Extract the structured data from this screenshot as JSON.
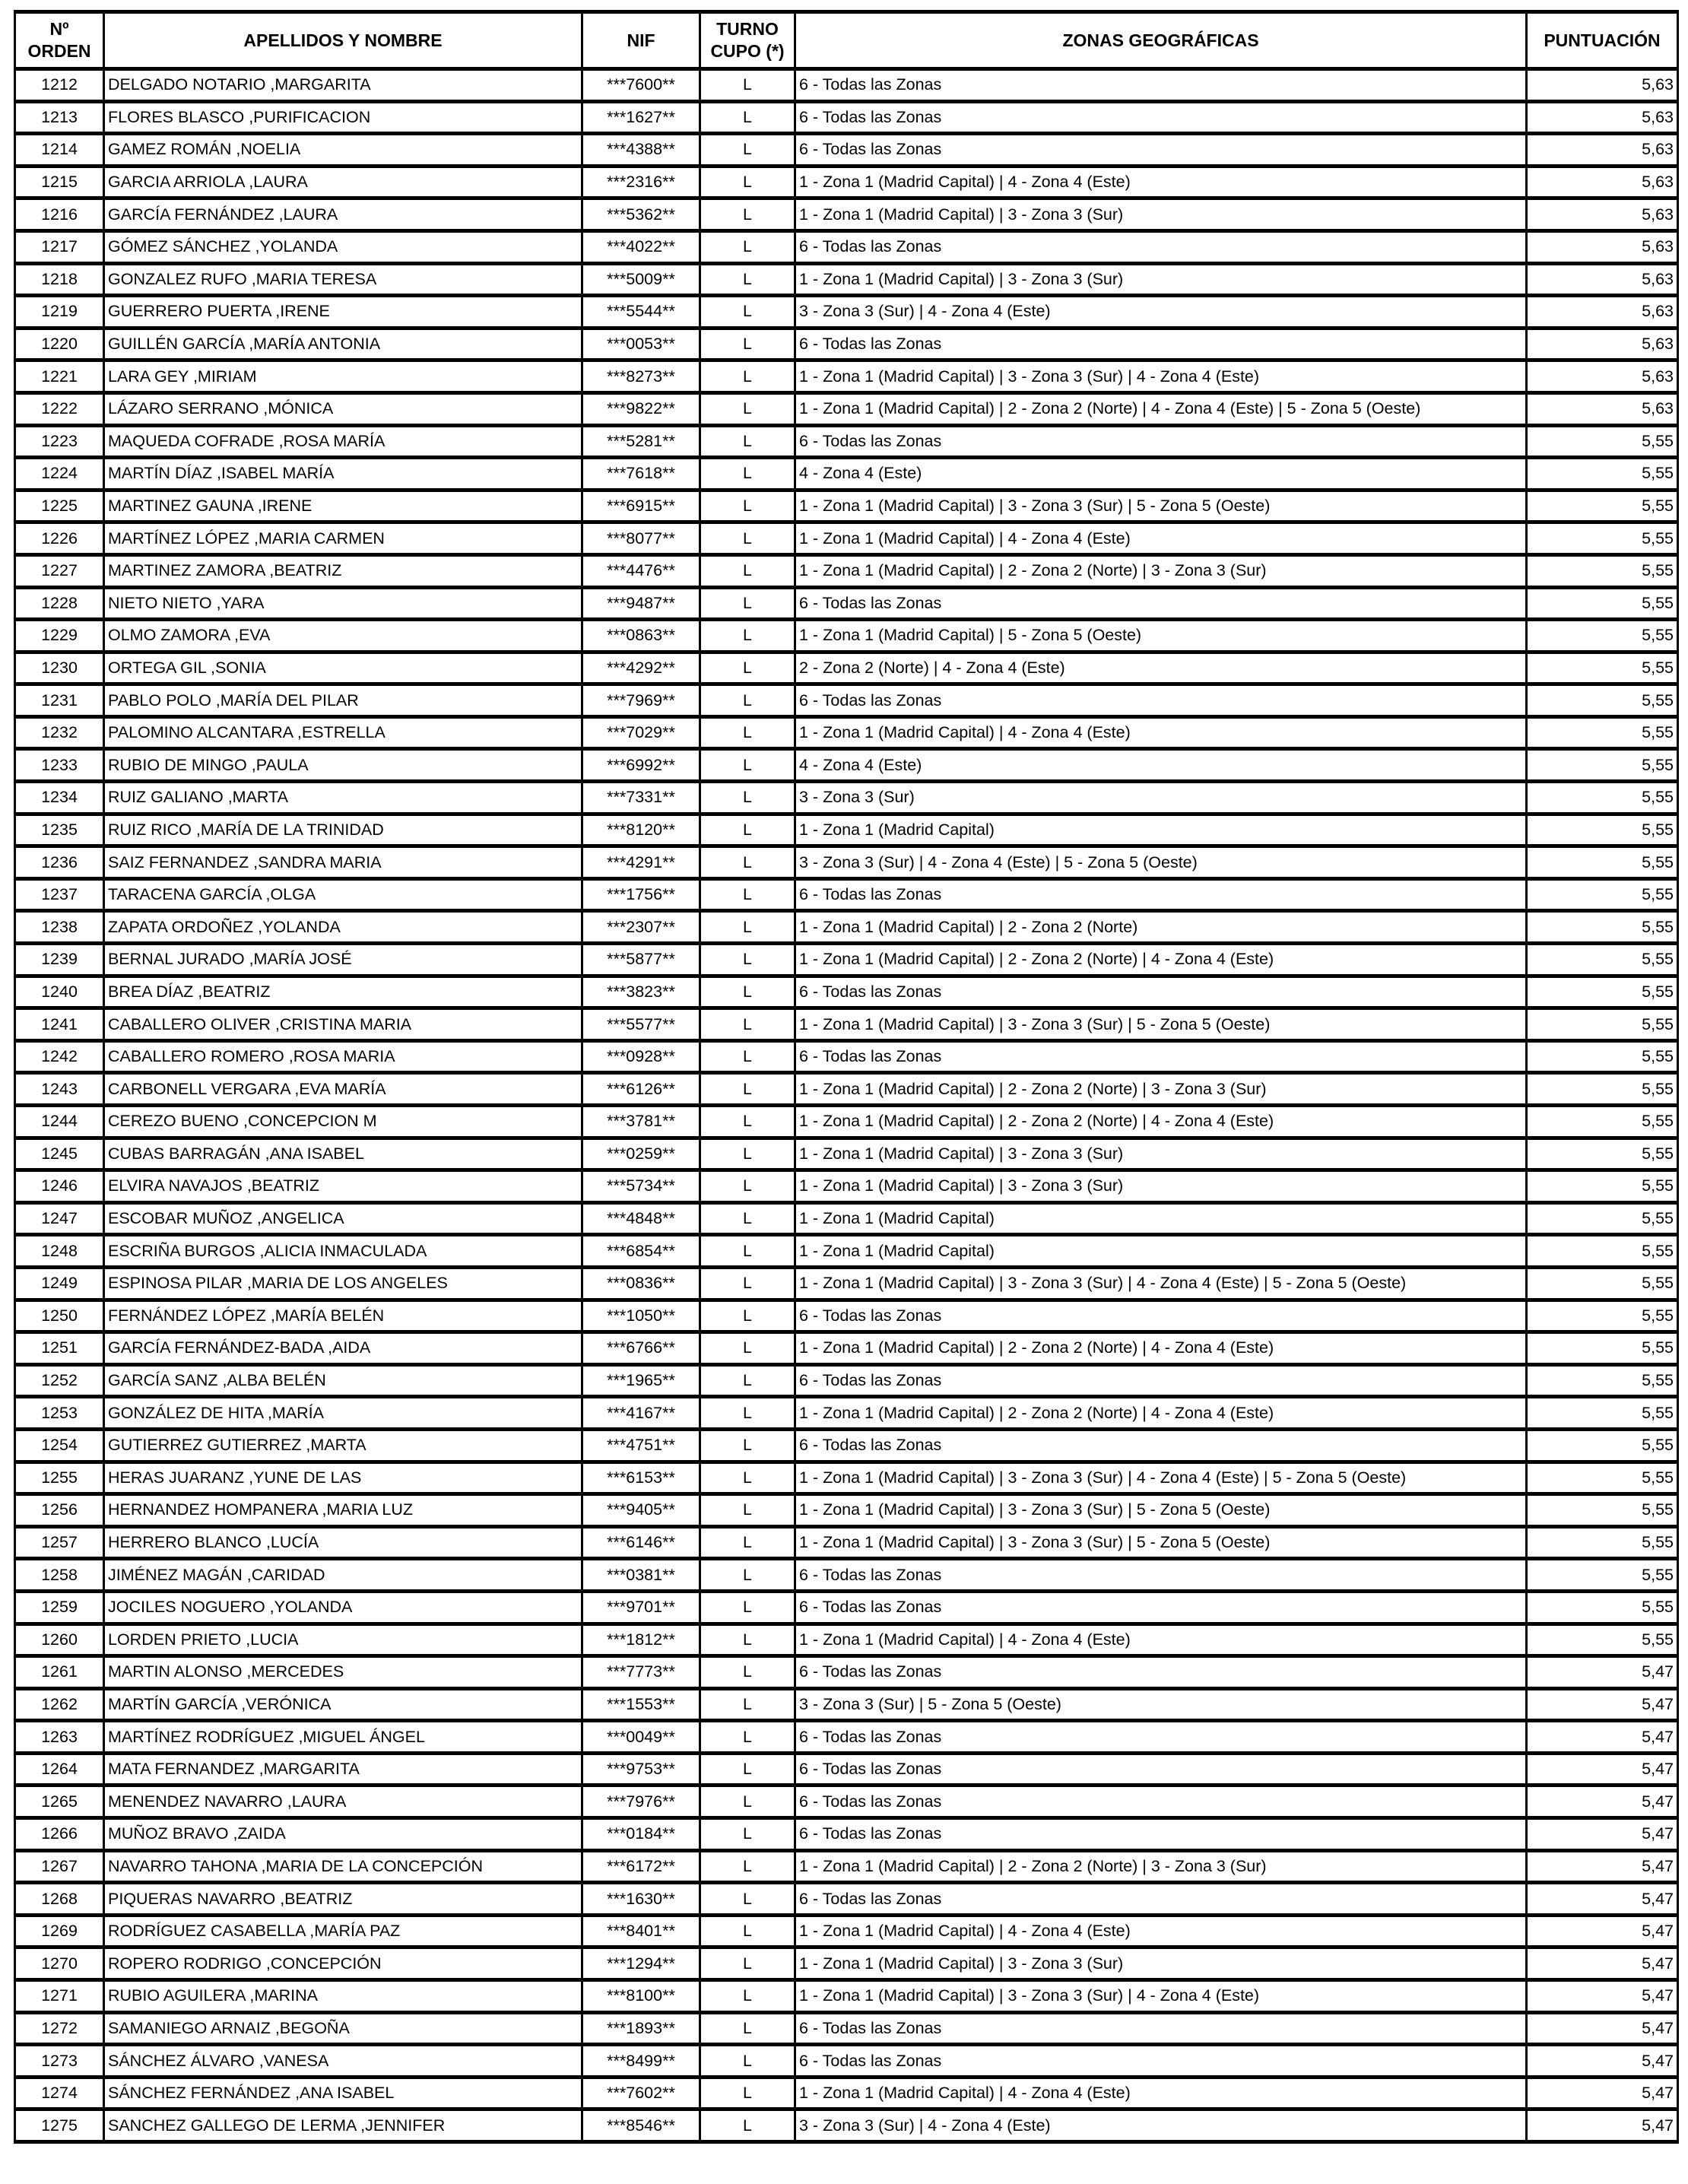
{
  "page": {
    "background_color": "#ffffff",
    "text_color": "#000000",
    "border_color": "#000000"
  },
  "table": {
    "headers": [
      "Nº\nORDEN",
      "APELLIDOS Y NOMBRE",
      "NIF",
      "TURNO\nCUPO (*)",
      "ZONAS GEOGRÁFICAS",
      "PUNTUACIÓN"
    ],
    "rows": [
      {
        "orden": "1212",
        "nombre": "DELGADO NOTARIO ,MARGARITA",
        "nif": "***7600**",
        "turno": "L",
        "zonas": "6 - Todas las Zonas",
        "puntuacion": "5,63"
      },
      {
        "orden": "1213",
        "nombre": "FLORES BLASCO ,PURIFICACION",
        "nif": "***1627**",
        "turno": "L",
        "zonas": "6 - Todas las Zonas",
        "puntuacion": "5,63"
      },
      {
        "orden": "1214",
        "nombre": "GAMEZ ROMÁN ,NOELIA",
        "nif": "***4388**",
        "turno": "L",
        "zonas": "6 - Todas las Zonas",
        "puntuacion": "5,63"
      },
      {
        "orden": "1215",
        "nombre": "GARCIA ARRIOLA ,LAURA",
        "nif": "***2316**",
        "turno": "L",
        "zonas": "1 - Zona 1 (Madrid Capital) | 4 - Zona 4 (Este)",
        "puntuacion": "5,63"
      },
      {
        "orden": "1216",
        "nombre": "GARCÍA FERNÁNDEZ ,LAURA",
        "nif": "***5362**",
        "turno": "L",
        "zonas": "1 - Zona 1 (Madrid Capital) | 3 - Zona 3 (Sur)",
        "puntuacion": "5,63"
      },
      {
        "orden": "1217",
        "nombre": "GÓMEZ SÁNCHEZ ,YOLANDA",
        "nif": "***4022**",
        "turno": "L",
        "zonas": "6 - Todas las Zonas",
        "puntuacion": "5,63"
      },
      {
        "orden": "1218",
        "nombre": "GONZALEZ RUFO ,MARIA TERESA",
        "nif": "***5009**",
        "turno": "L",
        "zonas": "1 - Zona 1 (Madrid Capital) | 3 - Zona 3 (Sur)",
        "puntuacion": "5,63"
      },
      {
        "orden": "1219",
        "nombre": "GUERRERO PUERTA ,IRENE",
        "nif": "***5544**",
        "turno": "L",
        "zonas": "3 - Zona 3 (Sur) | 4 - Zona 4 (Este)",
        "puntuacion": "5,63"
      },
      {
        "orden": "1220",
        "nombre": "GUILLÉN GARCÍA ,MARÍA ANTONIA",
        "nif": "***0053**",
        "turno": "L",
        "zonas": "6 - Todas las Zonas",
        "puntuacion": "5,63"
      },
      {
        "orden": "1221",
        "nombre": "LARA GEY ,MIRIAM",
        "nif": "***8273**",
        "turno": "L",
        "zonas": "1 - Zona 1 (Madrid Capital) | 3 - Zona 3 (Sur) | 4 - Zona 4 (Este)",
        "puntuacion": "5,63"
      },
      {
        "orden": "1222",
        "nombre": "LÁZARO SERRANO ,MÓNICA",
        "nif": "***9822**",
        "turno": "L",
        "zonas": "1 - Zona 1 (Madrid Capital) | 2 - Zona 2 (Norte) | 4 - Zona 4 (Este) | 5 - Zona 5 (Oeste)",
        "puntuacion": "5,63"
      },
      {
        "orden": "1223",
        "nombre": "MAQUEDA COFRADE ,ROSA MARÍA",
        "nif": "***5281**",
        "turno": "L",
        "zonas": "6 - Todas las Zonas",
        "puntuacion": "5,55"
      },
      {
        "orden": "1224",
        "nombre": "MARTÍN DÍAZ ,ISABEL MARÍA",
        "nif": "***7618**",
        "turno": "L",
        "zonas": "4 - Zona 4 (Este)",
        "puntuacion": "5,55"
      },
      {
        "orden": "1225",
        "nombre": "MARTINEZ GAUNA ,IRENE",
        "nif": "***6915**",
        "turno": "L",
        "zonas": "1 - Zona 1 (Madrid Capital) | 3 - Zona 3 (Sur) | 5 - Zona 5 (Oeste)",
        "puntuacion": "5,55"
      },
      {
        "orden": "1226",
        "nombre": "MARTÍNEZ LÓPEZ ,MARIA CARMEN",
        "nif": "***8077**",
        "turno": "L",
        "zonas": "1 - Zona 1 (Madrid Capital) | 4 - Zona 4 (Este)",
        "puntuacion": "5,55"
      },
      {
        "orden": "1227",
        "nombre": "MARTINEZ ZAMORA ,BEATRIZ",
        "nif": "***4476**",
        "turno": "L",
        "zonas": "1 - Zona 1 (Madrid Capital) | 2 - Zona 2 (Norte) | 3 - Zona 3 (Sur)",
        "puntuacion": "5,55"
      },
      {
        "orden": "1228",
        "nombre": "NIETO NIETO ,YARA",
        "nif": "***9487**",
        "turno": "L",
        "zonas": "6 - Todas las Zonas",
        "puntuacion": "5,55"
      },
      {
        "orden": "1229",
        "nombre": "OLMO ZAMORA ,EVA",
        "nif": "***0863**",
        "turno": "L",
        "zonas": "1 - Zona 1 (Madrid Capital) | 5 - Zona 5 (Oeste)",
        "puntuacion": "5,55"
      },
      {
        "orden": "1230",
        "nombre": "ORTEGA GIL ,SONIA",
        "nif": "***4292**",
        "turno": "L",
        "zonas": "2 - Zona 2 (Norte) | 4 - Zona 4 (Este)",
        "puntuacion": "5,55"
      },
      {
        "orden": "1231",
        "nombre": "PABLO POLO ,MARÍA DEL PILAR",
        "nif": "***7969**",
        "turno": "L",
        "zonas": "6 - Todas las Zonas",
        "puntuacion": "5,55"
      },
      {
        "orden": "1232",
        "nombre": "PALOMINO ALCANTARA ,ESTRELLA",
        "nif": "***7029**",
        "turno": "L",
        "zonas": "1 - Zona 1 (Madrid Capital) | 4 - Zona 4 (Este)",
        "puntuacion": "5,55"
      },
      {
        "orden": "1233",
        "nombre": "RUBIO DE MINGO ,PAULA",
        "nif": "***6992**",
        "turno": "L",
        "zonas": "4 - Zona 4 (Este)",
        "puntuacion": "5,55"
      },
      {
        "orden": "1234",
        "nombre": "RUIZ GALIANO ,MARTA",
        "nif": "***7331**",
        "turno": "L",
        "zonas": "3 - Zona 3 (Sur)",
        "puntuacion": "5,55"
      },
      {
        "orden": "1235",
        "nombre": "RUIZ RICO ,MARÍA DE LA TRINIDAD",
        "nif": "***8120**",
        "turno": "L",
        "zonas": "1 - Zona 1 (Madrid Capital)",
        "puntuacion": "5,55"
      },
      {
        "orden": "1236",
        "nombre": "SAIZ FERNANDEZ ,SANDRA MARIA",
        "nif": "***4291**",
        "turno": "L",
        "zonas": "3 - Zona 3 (Sur) | 4 - Zona 4 (Este) | 5 - Zona 5 (Oeste)",
        "puntuacion": "5,55"
      },
      {
        "orden": "1237",
        "nombre": "TARACENA GARCÍA ,OLGA",
        "nif": "***1756**",
        "turno": "L",
        "zonas": "6 - Todas las Zonas",
        "puntuacion": "5,55"
      },
      {
        "orden": "1238",
        "nombre": "ZAPATA ORDOÑEZ ,YOLANDA",
        "nif": "***2307**",
        "turno": "L",
        "zonas": "1 - Zona 1 (Madrid Capital) | 2 - Zona 2 (Norte)",
        "puntuacion": "5,55"
      },
      {
        "orden": "1239",
        "nombre": "BERNAL JURADO ,MARÍA JOSÉ",
        "nif": "***5877**",
        "turno": "L",
        "zonas": "1 - Zona 1 (Madrid Capital) | 2 - Zona 2 (Norte) | 4 - Zona 4 (Este)",
        "puntuacion": "5,55"
      },
      {
        "orden": "1240",
        "nombre": "BREA DÍAZ ,BEATRIZ",
        "nif": "***3823**",
        "turno": "L",
        "zonas": "6 - Todas las Zonas",
        "puntuacion": "5,55"
      },
      {
        "orden": "1241",
        "nombre": "CABALLERO OLIVER ,CRISTINA MARIA",
        "nif": "***5577**",
        "turno": "L",
        "zonas": "1 - Zona 1 (Madrid Capital) | 3 - Zona 3 (Sur) | 5 - Zona 5 (Oeste)",
        "puntuacion": "5,55"
      },
      {
        "orden": "1242",
        "nombre": "CABALLERO ROMERO ,ROSA MARIA",
        "nif": "***0928**",
        "turno": "L",
        "zonas": "6 - Todas las Zonas",
        "puntuacion": "5,55"
      },
      {
        "orden": "1243",
        "nombre": "CARBONELL VERGARA ,EVA MARÍA",
        "nif": "***6126**",
        "turno": "L",
        "zonas": "1 - Zona 1 (Madrid Capital) | 2 - Zona 2 (Norte) | 3 - Zona 3 (Sur)",
        "puntuacion": "5,55"
      },
      {
        "orden": "1244",
        "nombre": "CEREZO BUENO ,CONCEPCION M",
        "nif": "***3781**",
        "turno": "L",
        "zonas": "1 - Zona 1 (Madrid Capital) | 2 - Zona 2 (Norte) | 4 - Zona 4 (Este)",
        "puntuacion": "5,55"
      },
      {
        "orden": "1245",
        "nombre": "CUBAS BARRAGÁN ,ANA  ISABEL",
        "nif": "***0259**",
        "turno": "L",
        "zonas": "1 - Zona 1 (Madrid Capital) | 3 - Zona 3 (Sur)",
        "puntuacion": "5,55"
      },
      {
        "orden": "1246",
        "nombre": "ELVIRA NAVAJOS ,BEATRIZ",
        "nif": "***5734**",
        "turno": "L",
        "zonas": "1 - Zona 1 (Madrid Capital) | 3 - Zona 3 (Sur)",
        "puntuacion": "5,55"
      },
      {
        "orden": "1247",
        "nombre": "ESCOBAR MUÑOZ ,ANGELICA",
        "nif": "***4848**",
        "turno": "L",
        "zonas": "1 - Zona 1 (Madrid Capital)",
        "puntuacion": "5,55"
      },
      {
        "orden": "1248",
        "nombre": "ESCRIÑA BURGOS ,ALICIA INMACULADA",
        "nif": "***6854**",
        "turno": "L",
        "zonas": "1 - Zona 1 (Madrid Capital)",
        "puntuacion": "5,55"
      },
      {
        "orden": "1249",
        "nombre": "ESPINOSA PILAR ,MARIA DE LOS ANGELES",
        "nif": "***0836**",
        "turno": "L",
        "zonas": "1 - Zona 1 (Madrid Capital) | 3 - Zona 3 (Sur) | 4 - Zona 4 (Este) | 5 - Zona 5 (Oeste)",
        "puntuacion": "5,55"
      },
      {
        "orden": "1250",
        "nombre": "FERNÁNDEZ LÓPEZ ,MARÍA BELÉN",
        "nif": "***1050**",
        "turno": "L",
        "zonas": "6 - Todas las Zonas",
        "puntuacion": "5,55"
      },
      {
        "orden": "1251",
        "nombre": "GARCÍA FERNÁNDEZ-BADA ,AIDA",
        "nif": "***6766**",
        "turno": "L",
        "zonas": "1 - Zona 1 (Madrid Capital) | 2 - Zona 2 (Norte) | 4 - Zona 4 (Este)",
        "puntuacion": "5,55"
      },
      {
        "orden": "1252",
        "nombre": "GARCÍA SANZ ,ALBA BELÉN",
        "nif": "***1965**",
        "turno": "L",
        "zonas": "6 - Todas las Zonas",
        "puntuacion": "5,55"
      },
      {
        "orden": "1253",
        "nombre": "GONZÁLEZ DE HITA ,MARÍA",
        "nif": "***4167**",
        "turno": "L",
        "zonas": "1 - Zona 1 (Madrid Capital) | 2 - Zona 2 (Norte) | 4 - Zona 4 (Este)",
        "puntuacion": "5,55"
      },
      {
        "orden": "1254",
        "nombre": "GUTIERREZ GUTIERREZ ,MARTA",
        "nif": "***4751**",
        "turno": "L",
        "zonas": "6 - Todas las Zonas",
        "puntuacion": "5,55"
      },
      {
        "orden": "1255",
        "nombre": "HERAS JUARANZ ,YUNE DE LAS",
        "nif": "***6153**",
        "turno": "L",
        "zonas": "1 - Zona 1 (Madrid Capital) | 3 - Zona 3 (Sur) | 4 - Zona 4 (Este) | 5 - Zona 5 (Oeste)",
        "puntuacion": "5,55"
      },
      {
        "orden": "1256",
        "nombre": "HERNANDEZ HOMPANERA ,MARIA LUZ",
        "nif": "***9405**",
        "turno": "L",
        "zonas": "1 - Zona 1 (Madrid Capital) | 3 - Zona 3 (Sur) | 5 - Zona 5 (Oeste)",
        "puntuacion": "5,55"
      },
      {
        "orden": "1257",
        "nombre": "HERRERO BLANCO ,LUCÍA",
        "nif": "***6146**",
        "turno": "L",
        "zonas": "1 - Zona 1 (Madrid Capital) | 3 - Zona 3 (Sur) | 5 - Zona 5 (Oeste)",
        "puntuacion": "5,55"
      },
      {
        "orden": "1258",
        "nombre": "JIMÉNEZ MAGÁN ,CARIDAD",
        "nif": "***0381**",
        "turno": "L",
        "zonas": "6 - Todas las Zonas",
        "puntuacion": "5,55"
      },
      {
        "orden": "1259",
        "nombre": "JOCILES NOGUERO ,YOLANDA",
        "nif": "***9701**",
        "turno": "L",
        "zonas": "6 - Todas las Zonas",
        "puntuacion": "5,55"
      },
      {
        "orden": "1260",
        "nombre": "LORDEN PRIETO ,LUCIA",
        "nif": "***1812**",
        "turno": "L",
        "zonas": "1 - Zona 1 (Madrid Capital) | 4 - Zona 4 (Este)",
        "puntuacion": "5,55"
      },
      {
        "orden": "1261",
        "nombre": "MARTIN ALONSO ,MERCEDES",
        "nif": "***7773**",
        "turno": "L",
        "zonas": "6 - Todas las Zonas",
        "puntuacion": "5,47"
      },
      {
        "orden": "1262",
        "nombre": "MARTÍN GARCÍA ,VERÓNICA",
        "nif": "***1553**",
        "turno": "L",
        "zonas": "3 - Zona 3 (Sur) | 5 - Zona 5 (Oeste)",
        "puntuacion": "5,47"
      },
      {
        "orden": "1263",
        "nombre": "MARTÍNEZ RODRÍGUEZ ,MIGUEL ÁNGEL",
        "nif": "***0049**",
        "turno": "L",
        "zonas": "6 - Todas las Zonas",
        "puntuacion": "5,47"
      },
      {
        "orden": "1264",
        "nombre": "MATA FERNANDEZ ,MARGARITA",
        "nif": "***9753**",
        "turno": "L",
        "zonas": "6 - Todas las Zonas",
        "puntuacion": "5,47"
      },
      {
        "orden": "1265",
        "nombre": "MENENDEZ NAVARRO ,LAURA",
        "nif": "***7976**",
        "turno": "L",
        "zonas": "6 - Todas las Zonas",
        "puntuacion": "5,47"
      },
      {
        "orden": "1266",
        "nombre": "MUÑOZ BRAVO ,ZAIDA",
        "nif": "***0184**",
        "turno": "L",
        "zonas": "6 - Todas las Zonas",
        "puntuacion": "5,47"
      },
      {
        "orden": "1267",
        "nombre": "NAVARRO TAHONA ,MARIA DE LA CONCEPCIÓN",
        "nif": "***6172**",
        "turno": "L",
        "zonas": "1 - Zona 1 (Madrid Capital) | 2 - Zona 2 (Norte) | 3 - Zona 3 (Sur)",
        "puntuacion": "5,47"
      },
      {
        "orden": "1268",
        "nombre": "PIQUERAS NAVARRO ,BEATRIZ",
        "nif": "***1630**",
        "turno": "L",
        "zonas": "6 - Todas las Zonas",
        "puntuacion": "5,47"
      },
      {
        "orden": "1269",
        "nombre": "RODRÍGUEZ CASABELLA ,MARÍA PAZ",
        "nif": "***8401**",
        "turno": "L",
        "zonas": "1 - Zona 1 (Madrid Capital) | 4 - Zona 4 (Este)",
        "puntuacion": "5,47"
      },
      {
        "orden": "1270",
        "nombre": "ROPERO RODRIGO ,CONCEPCIÓN",
        "nif": "***1294**",
        "turno": "L",
        "zonas": "1 - Zona 1 (Madrid Capital) | 3 - Zona 3 (Sur)",
        "puntuacion": "5,47"
      },
      {
        "orden": "1271",
        "nombre": "RUBIO AGUILERA ,MARINA",
        "nif": "***8100**",
        "turno": "L",
        "zonas": "1 - Zona 1 (Madrid Capital) | 3 - Zona 3 (Sur) | 4 - Zona 4 (Este)",
        "puntuacion": "5,47"
      },
      {
        "orden": "1272",
        "nombre": "SAMANIEGO ARNAIZ ,BEGOÑA",
        "nif": "***1893**",
        "turno": "L",
        "zonas": "6 - Todas las Zonas",
        "puntuacion": "5,47"
      },
      {
        "orden": "1273",
        "nombre": "SÁNCHEZ ÁLVARO ,VANESA",
        "nif": "***8499**",
        "turno": "L",
        "zonas": "6 - Todas las Zonas",
        "puntuacion": "5,47"
      },
      {
        "orden": "1274",
        "nombre": "SÁNCHEZ FERNÁNDEZ ,ANA  ISABEL",
        "nif": "***7602**",
        "turno": "L",
        "zonas": "1 - Zona 1 (Madrid Capital) | 4 - Zona 4 (Este)",
        "puntuacion": "5,47"
      },
      {
        "orden": "1275",
        "nombre": "SANCHEZ GALLEGO DE LERMA ,JENNIFER",
        "nif": "***8546**",
        "turno": "L",
        "zonas": "3 - Zona 3 (Sur) | 4 - Zona 4 (Este)",
        "puntuacion": "5,47"
      }
    ]
  }
}
